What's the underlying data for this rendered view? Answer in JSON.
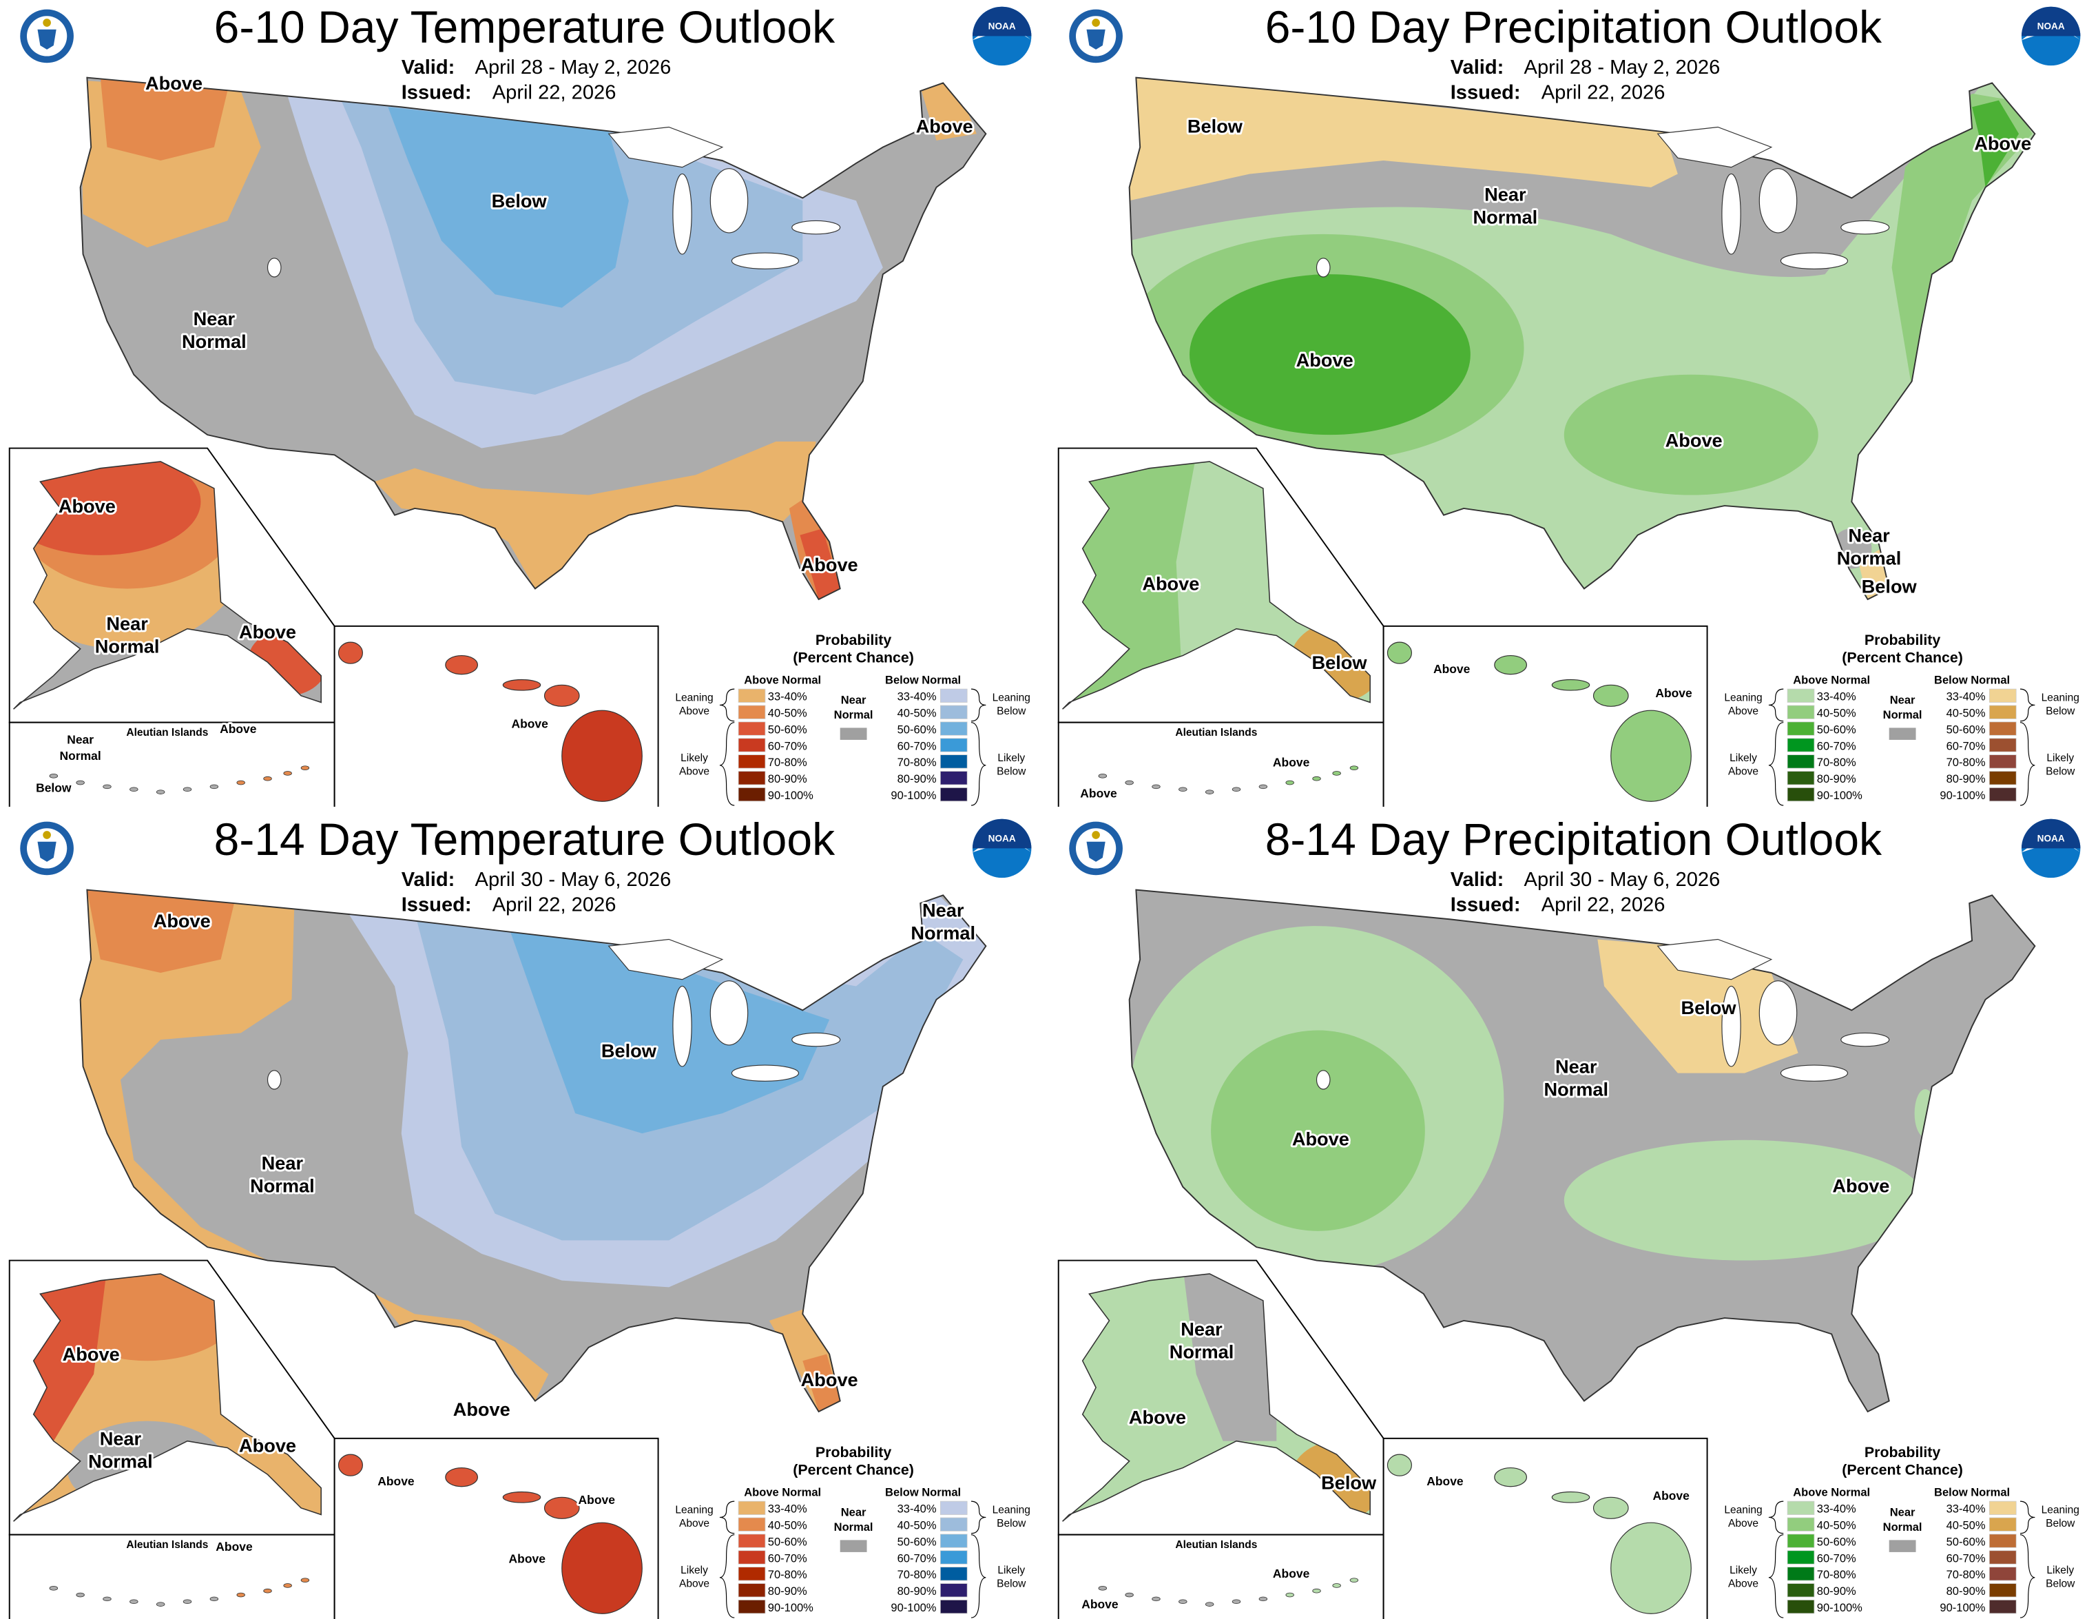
{
  "panels": [
    {
      "title": "6-10 Day Temperature Outlook",
      "valid_label": "Valid:",
      "valid": "April 28 - May 2, 2026",
      "issued_label": "Issued:",
      "issued": "April 22, 2026",
      "legend": "temperature",
      "aleutian_title": "Aleutian Islands",
      "labels": [
        {
          "lines": [
            "Above"
          ]
        },
        {
          "lines": [
            "Above"
          ]
        },
        {
          "lines": [
            "Below"
          ]
        },
        {
          "lines": [
            "Near",
            "Normal"
          ]
        },
        {
          "lines": [
            "Above"
          ]
        },
        {
          "lines": [
            "Above"
          ]
        },
        {
          "lines": [
            "Near",
            "Normal"
          ]
        },
        {
          "lines": [
            "Above"
          ]
        },
        {
          "lines": [
            "Near",
            "Normal"
          ]
        },
        {
          "lines": [
            "Below"
          ]
        },
        {
          "lines": [
            "Above"
          ]
        },
        {
          "lines": [
            "Above"
          ]
        }
      ]
    },
    {
      "title": "6-10 Day Precipitation Outlook",
      "valid_label": "Valid:",
      "valid": "April 28 - May 2, 2026",
      "issued_label": "Issued:",
      "issued": "April 22, 2026",
      "legend": "precipitation",
      "aleutian_title": "Aleutian Islands",
      "labels": [
        {
          "lines": [
            "Below"
          ]
        },
        {
          "lines": [
            "Above"
          ]
        },
        {
          "lines": [
            "Near",
            "Normal"
          ]
        },
        {
          "lines": [
            "Above"
          ]
        },
        {
          "lines": [
            "Above"
          ]
        },
        {
          "lines": [
            "Near",
            "Normal"
          ]
        },
        {
          "lines": [
            "Below"
          ]
        },
        {
          "lines": [
            "Above"
          ]
        },
        {
          "lines": [
            "Below"
          ]
        },
        {
          "lines": [
            "Above"
          ]
        },
        {
          "lines": [
            "Above"
          ]
        },
        {
          "lines": [
            "Above"
          ]
        },
        {
          "lines": [
            "Above"
          ]
        }
      ]
    },
    {
      "title": "8-14 Day Temperature Outlook",
      "valid_label": "Valid:",
      "valid": "April 30 - May 6, 2026",
      "issued_label": "Issued:",
      "issued": "April 22, 2026",
      "legend": "temperature",
      "aleutian_title": "Aleutian Islands",
      "labels": [
        {
          "lines": [
            "Above"
          ]
        },
        {
          "lines": [
            "Near",
            "Normal"
          ]
        },
        {
          "lines": [
            "Below"
          ]
        },
        {
          "lines": [
            "Near",
            "Normal"
          ]
        },
        {
          "lines": [
            "Above"
          ]
        },
        {
          "lines": [
            "Above"
          ]
        },
        {
          "lines": [
            "Above"
          ]
        },
        {
          "lines": [
            "Near",
            "Normal"
          ]
        },
        {
          "lines": [
            "Above"
          ]
        },
        {
          "lines": [
            "Above"
          ]
        },
        {
          "lines": [
            "Above"
          ]
        },
        {
          "lines": [
            "Above"
          ]
        },
        {
          "lines": [
            "Above"
          ]
        }
      ]
    },
    {
      "title": "8-14 Day Precipitation Outlook",
      "valid_label": "Valid:",
      "valid": "April 30 - May 6, 2026",
      "issued_label": "Issued:",
      "issued": "April 22, 2026",
      "legend": "precipitation",
      "aleutian_title": "Aleutian Islands",
      "labels": [
        {
          "lines": [
            "Below"
          ]
        },
        {
          "lines": [
            "Near",
            "Normal"
          ]
        },
        {
          "lines": [
            "Above"
          ]
        },
        {
          "lines": [
            "Above"
          ]
        },
        {
          "lines": [
            "Near",
            "Normal"
          ]
        },
        {
          "lines": [
            "Above"
          ]
        },
        {
          "lines": [
            "Below"
          ]
        },
        {
          "lines": [
            "Above"
          ]
        },
        {
          "lines": [
            "Above"
          ]
        },
        {
          "lines": [
            "Above"
          ]
        },
        {
          "lines": [
            "Above"
          ]
        }
      ]
    }
  ],
  "legends": {
    "temperature": {
      "title": "Probability",
      "subtitle": "(Percent Chance)",
      "above_header": "Above Normal",
      "below_header": "Below Normal",
      "near_normal": [
        "Near",
        "Normal"
      ],
      "leaning_above": [
        "Leaning",
        "Above"
      ],
      "likely_above": [
        "Likely",
        "Above"
      ],
      "leaning_below": [
        "Leaning",
        "Below"
      ],
      "likely_below": [
        "Likely",
        "Below"
      ],
      "ranges": [
        "33-40%",
        "40-50%",
        "50-60%",
        "60-70%",
        "70-80%",
        "80-90%",
        "90-100%"
      ],
      "above_colors": [
        "#E9B36B",
        "#E48A4D",
        "#DC5637",
        "#C93A20",
        "#B02A00",
        "#8E2300",
        "#6B1E00"
      ],
      "below_colors": [
        "#BFCBE6",
        "#9DBCDC",
        "#72B1DD",
        "#3A9AD8",
        "#005DA0",
        "#2E1F6E",
        "#1E1548"
      ],
      "near_color": "#A0A0A0"
    },
    "precipitation": {
      "title": "Probability",
      "subtitle": "(Percent Chance)",
      "above_header": "Above Normal",
      "below_header": "Below Normal",
      "near_normal": [
        "Near",
        "Normal"
      ],
      "leaning_above": [
        "Leaning",
        "Above"
      ],
      "likely_above": [
        "Likely",
        "Above"
      ],
      "leaning_below": [
        "Leaning",
        "Below"
      ],
      "likely_below": [
        "Likely",
        "Below"
      ],
      "ranges": [
        "33-40%",
        "40-50%",
        "50-60%",
        "60-70%",
        "70-80%",
        "80-90%",
        "90-100%"
      ],
      "above_colors": [
        "#B5DBAB",
        "#92CD7E",
        "#4CB135",
        "#00961F",
        "#007A18",
        "#2A5E10",
        "#284F0B"
      ],
      "below_colors": [
        "#F1D393",
        "#D9A54E",
        "#BE6D35",
        "#9C5030",
        "#8F453A",
        "#7A3D00",
        "#4F2C2C"
      ],
      "near_color": "#A0A0A0"
    }
  },
  "map_colors": {
    "near_normal_fill": "#ACACAC",
    "water": "#FFFFFF",
    "border": "#333333"
  },
  "logos": {
    "left": "seal-icon",
    "right": "NOAA"
  }
}
